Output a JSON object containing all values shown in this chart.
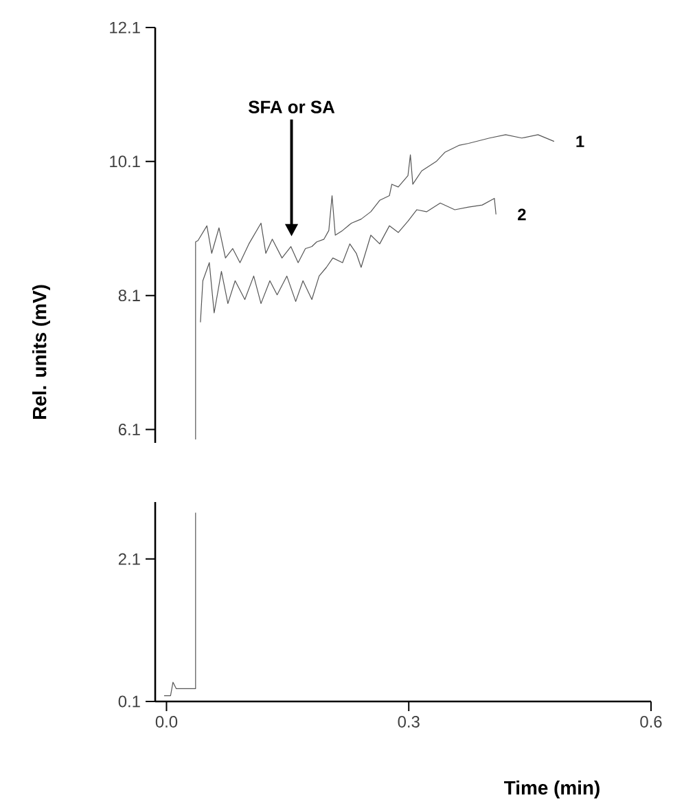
{
  "chart_data": [
    {
      "type": "line",
      "ylabel": "Rel. units (mV)",
      "xlim": [
        -0.014,
        0.6
      ],
      "ylim": [
        5.9,
        12.1
      ],
      "yticks": [
        6.1,
        8.1,
        10.1,
        12.1
      ],
      "tick_labels": "y",
      "annotations": [
        "SFA or SA"
      ],
      "series": [
        {
          "name": "1",
          "color": "#555555",
          "x": [
            0.036,
            0.036,
            0.039,
            0.05,
            0.056,
            0.065,
            0.073,
            0.082,
            0.091,
            0.102,
            0.117,
            0.123,
            0.131,
            0.143,
            0.154,
            0.163,
            0.172,
            0.18,
            0.186,
            0.195,
            0.201,
            0.205,
            0.209,
            0.218,
            0.229,
            0.241,
            0.253,
            0.264,
            0.276,
            0.279,
            0.287,
            0.299,
            0.302,
            0.305,
            0.316,
            0.334,
            0.345,
            0.362,
            0.374,
            0.4,
            0.42,
            0.44,
            0.46,
            0.48
          ],
          "values": [
            5.95,
            8.9,
            8.92,
            9.14,
            8.73,
            9.11,
            8.66,
            8.8,
            8.59,
            8.87,
            9.18,
            8.73,
            8.94,
            8.66,
            8.83,
            8.59,
            8.8,
            8.83,
            8.9,
            8.94,
            9.07,
            9.59,
            9.0,
            9.07,
            9.18,
            9.24,
            9.35,
            9.52,
            9.59,
            9.76,
            9.72,
            9.89,
            10.2,
            9.76,
            9.96,
            10.1,
            10.24,
            10.34,
            10.37,
            10.45,
            10.5,
            10.45,
            10.5,
            10.4
          ]
        },
        {
          "name": "2",
          "color": "#555555",
          "x": [
            0.042,
            0.045,
            0.053,
            0.059,
            0.068,
            0.076,
            0.085,
            0.097,
            0.108,
            0.117,
            0.128,
            0.137,
            0.149,
            0.16,
            0.169,
            0.18,
            0.189,
            0.198,
            0.206,
            0.218,
            0.227,
            0.235,
            0.241,
            0.253,
            0.264,
            0.276,
            0.287,
            0.299,
            0.31,
            0.322,
            0.339,
            0.357,
            0.374,
            0.391,
            0.406,
            0.408
          ],
          "values": [
            7.7,
            8.32,
            8.59,
            7.84,
            8.46,
            7.98,
            8.32,
            8.04,
            8.39,
            7.98,
            8.32,
            8.11,
            8.39,
            8.01,
            8.32,
            8.04,
            8.39,
            8.52,
            8.66,
            8.59,
            8.87,
            8.73,
            8.52,
            9.0,
            8.87,
            9.14,
            9.04,
            9.21,
            9.38,
            9.35,
            9.48,
            9.38,
            9.42,
            9.45,
            9.55,
            9.31
          ]
        }
      ]
    },
    {
      "type": "line",
      "xlabel": "Time (min)",
      "xlim": [
        -0.014,
        0.6
      ],
      "ylim": [
        0.1,
        2.9
      ],
      "xticks": [
        {
          "value": 0,
          "label": "0.0"
        },
        0.3,
        0.6
      ],
      "yticks": [
        0.1,
        2.1
      ],
      "series": [
        {
          "color": "#555555",
          "x": [
            -0.003,
            0.005,
            0.008,
            0.012,
            0.036,
            0.036
          ],
          "values": [
            0.18,
            0.18,
            0.37,
            0.28,
            0.28,
            2.75
          ]
        }
      ]
    }
  ]
}
